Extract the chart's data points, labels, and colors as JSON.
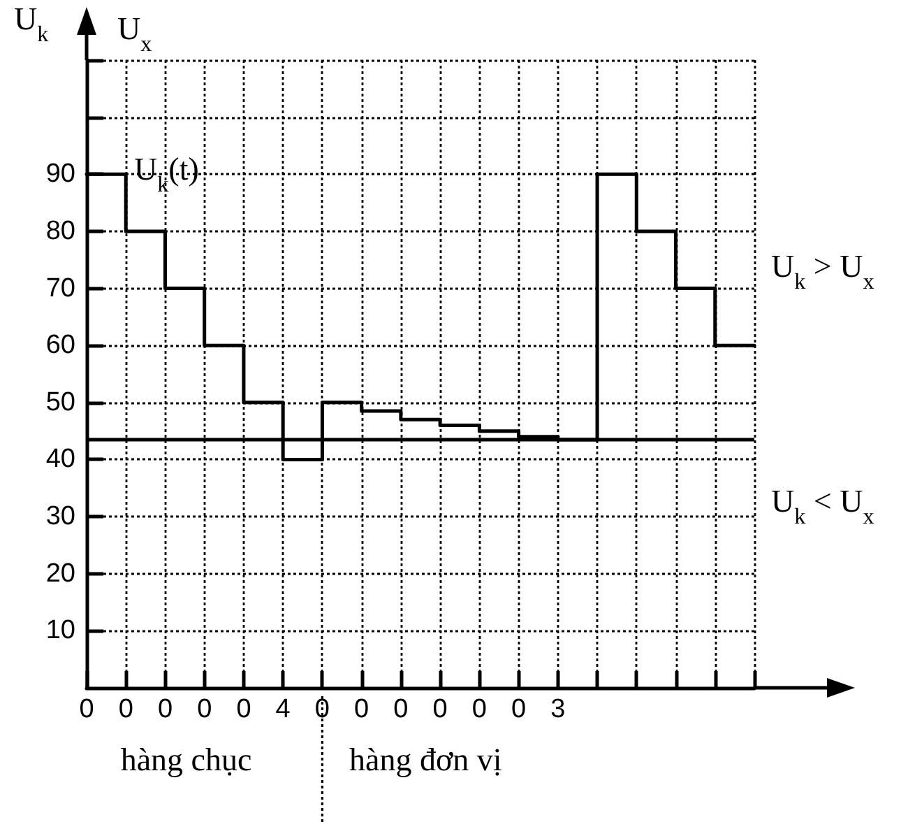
{
  "chart_data": {
    "type": "step",
    "ylabel": "U$_{k}$",
    "annotations": [
      "U$_{x}$",
      "U$_{k}$ > U$_{x}$",
      "U$_{k}$ < U$_{x}$",
      "hàng chục",
      "hàng đơn vị"
    ],
    "categories": [
      "0",
      "0",
      "0",
      "0",
      "0",
      "4",
      "0",
      "0",
      "0",
      "0",
      "0",
      "0",
      "3",
      null,
      null,
      null,
      null,
      null
    ],
    "series": [
      {
        "name": "U$_{k}$(t)",
        "color": "#000000",
        "values": [
          90,
          80,
          70,
          60,
          50,
          40,
          50,
          48.5,
          47,
          46,
          45,
          44,
          43.5,
          90,
          80,
          70,
          60,
          60
        ]
      }
    ],
    "ylim": [
      0,
      110
    ],
    "yticks": [
      10,
      20,
      30,
      40,
      50,
      60,
      70,
      80,
      90,
      {
        "value": 100,
        "label": null
      },
      {
        "value": 110,
        "label": null
      }
    ],
    "ref_lines": [
      {
        "axis": "y",
        "value": 43.5,
        "color": "#000000",
        "line_style": "solid"
      }
    ],
    "grid": true,
    "line_style": "solid",
    "marker": "none"
  }
}
